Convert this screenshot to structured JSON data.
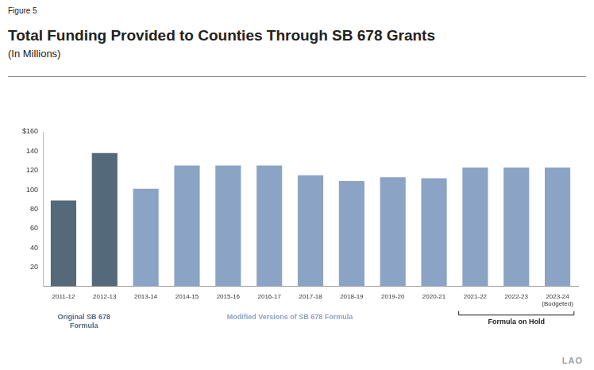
{
  "chart_data": {
    "type": "bar",
    "figure_label": "Figure 5",
    "title": "Total Funding Provided to Counties Through SB 678 Grants",
    "subtitle": "(In Millions)",
    "source": "LAO",
    "categories": [
      "2011-12",
      "2012-13",
      "2013-14",
      "2014-15",
      "2015-16",
      "2016-17",
      "2017-18",
      "2018-19",
      "2019-20",
      "2020-21",
      "2021-22",
      "2022-23",
      "2023-24 (Budgeted)"
    ],
    "values": [
      89,
      138,
      101,
      125,
      125,
      125,
      115,
      109,
      113,
      112,
      123,
      123,
      123
    ],
    "colors": [
      "#546a7b",
      "#546a7b",
      "#8ba3c4",
      "#8ba3c4",
      "#8ba3c4",
      "#8ba3c4",
      "#8ba3c4",
      "#8ba3c4",
      "#8ba3c4",
      "#8ba3c4",
      "#8ba3c4",
      "#8ba3c4",
      "#8ba3c4"
    ],
    "ylim": [
      0,
      160
    ],
    "yticks": [
      20,
      40,
      60,
      80,
      100,
      120,
      140,
      {
        "value": 160,
        "label": "$160"
      }
    ],
    "grid": false,
    "groups": [
      {
        "label": "Original SB 678 Formula",
        "categories": [
          "2011-12",
          "2012-13"
        ]
      },
      {
        "label": "Modified Versions of SB 678 Formula",
        "categories": [
          "2013-14",
          "2014-15",
          "2015-16",
          "2016-17",
          "2017-18",
          "2018-19",
          "2019-20",
          "2020-21"
        ]
      },
      {
        "label": "Formula on Hold",
        "categories": [
          "2021-22",
          "2022-23",
          "2023-24 (Budgeted)"
        ]
      }
    ]
  }
}
